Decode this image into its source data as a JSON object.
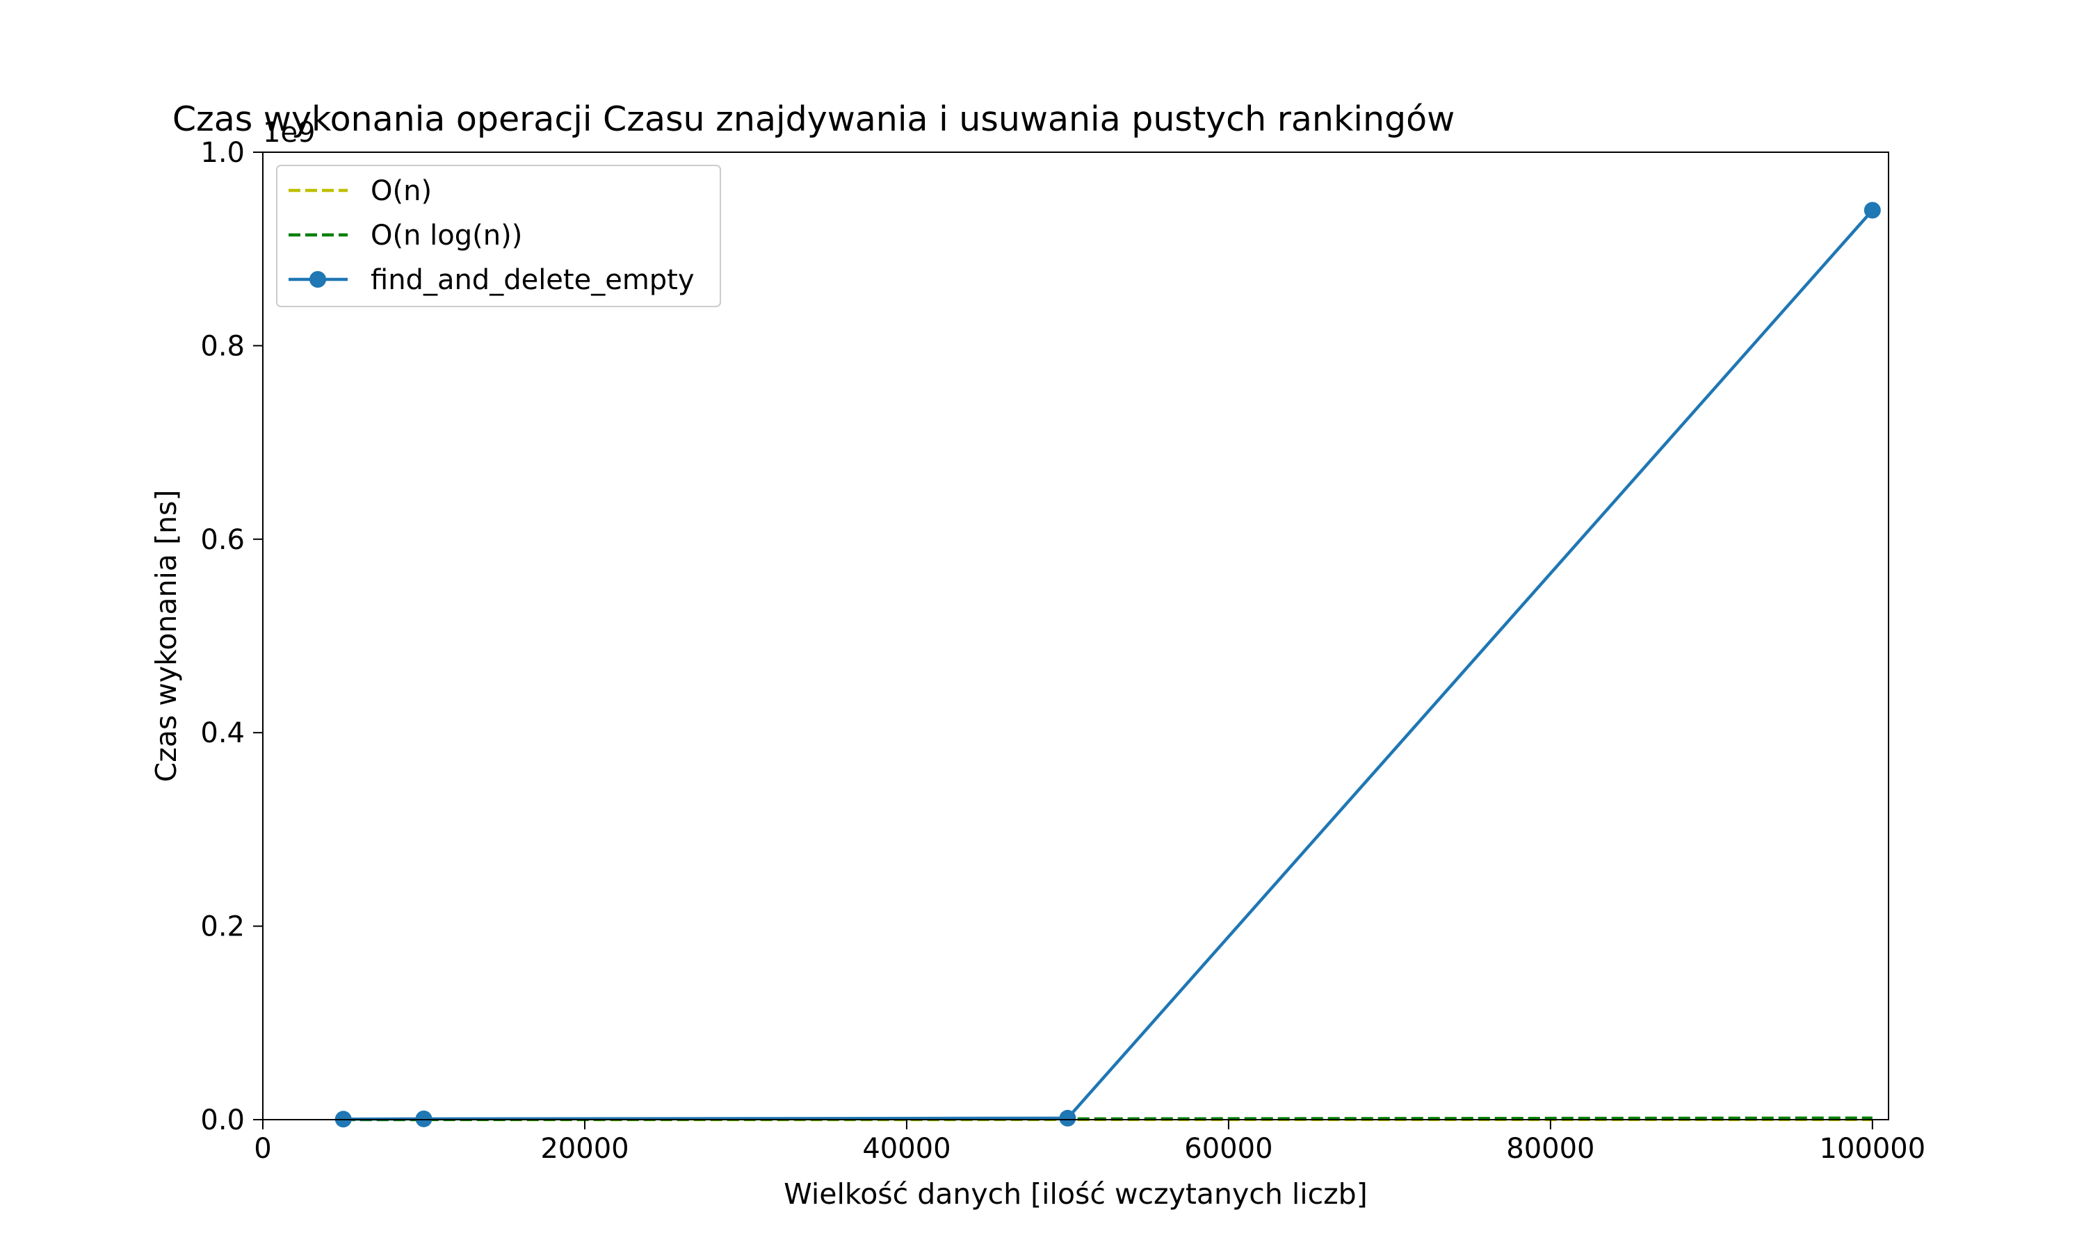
{
  "chart_data": {
    "type": "line",
    "title": "Czas wykonania operacji Czasu znajdywania i usuwania pustych rankingów",
    "xlabel": "Wielkość danych [ilość wczytanych liczb]",
    "ylabel": "Czas wykonania [ns]",
    "y_offset_label": "1e9",
    "xlim": [
      0,
      101000
    ],
    "ylim": [
      0,
      1.0
    ],
    "x_ticks": [
      0,
      20000,
      40000,
      60000,
      80000,
      100000
    ],
    "x_tick_labels": [
      "0",
      "20000",
      "40000",
      "60000",
      "80000",
      "100000"
    ],
    "y_ticks": [
      0.0,
      0.2,
      0.4,
      0.6,
      0.8,
      1.0
    ],
    "y_tick_labels": [
      "0.0",
      "0.2",
      "0.4",
      "0.6",
      "0.8",
      "1.0"
    ],
    "grid": false,
    "legend_position": "top-left",
    "series": [
      {
        "name": "O(n)",
        "style": "dashed",
        "color": "#bfbf00",
        "marker": false,
        "x": [
          5000,
          10000,
          50000,
          100000
        ],
        "y": [
          5e-06,
          1e-05,
          5e-05,
          0.0001
        ]
      },
      {
        "name": "O(n log(n))",
        "style": "dashed",
        "color": "#008000",
        "marker": false,
        "x": [
          5000,
          10000,
          50000,
          100000
        ],
        "y": [
          6.15e-05,
          0.000133,
          0.00078,
          0.00166
        ]
      },
      {
        "name": "find_and_delete_empty",
        "style": "solid",
        "color": "#1f77b4",
        "marker": true,
        "x": [
          5000,
          10000,
          50000,
          100000
        ],
        "y": [
          0.0005,
          0.0008,
          0.0015,
          0.94
        ]
      }
    ]
  }
}
